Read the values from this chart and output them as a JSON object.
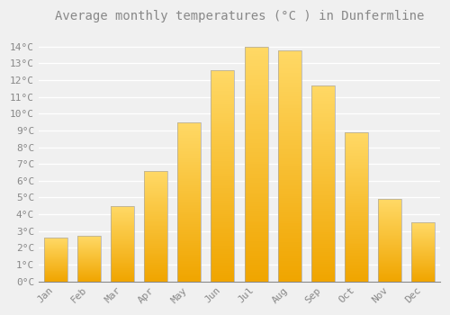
{
  "months": [
    "Jan",
    "Feb",
    "Mar",
    "Apr",
    "May",
    "Jun",
    "Jul",
    "Aug",
    "Sep",
    "Oct",
    "Nov",
    "Dec"
  ],
  "temperatures": [
    2.6,
    2.7,
    4.5,
    6.6,
    9.5,
    12.6,
    14.0,
    13.8,
    11.7,
    8.9,
    4.9,
    3.5
  ],
  "title": "Average monthly temperatures (°C ) in Dunfermline",
  "bar_color_top": "#FFD966",
  "bar_color_bottom": "#F0A500",
  "bar_edge_color": "#AAAAAA",
  "ylim": [
    0,
    15
  ],
  "background_color": "#F0F0F0",
  "grid_color": "#FFFFFF",
  "title_fontsize": 10,
  "tick_fontsize": 8,
  "bar_width": 0.7,
  "gradient_steps": 100
}
